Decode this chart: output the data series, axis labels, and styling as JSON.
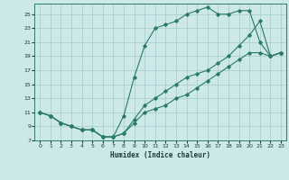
{
  "xlabel": "Humidex (Indice chaleur)",
  "bg_color": "#cce8e8",
  "grid_color": "#aacfcf",
  "line_color": "#2a7a6a",
  "line1_y": [
    11,
    10.5,
    9.5,
    9,
    8.5,
    8.5,
    7.5,
    7.5,
    10.5,
    16,
    20.5,
    23,
    23.5,
    24,
    25,
    25.5,
    26,
    25,
    25,
    25.5,
    25.5,
    21,
    19,
    19.5
  ],
  "line2_y": [
    11,
    10.5,
    9.5,
    9,
    8.5,
    8.5,
    7.5,
    7.5,
    8,
    10,
    12,
    13,
    14,
    15,
    16,
    16.5,
    17,
    18,
    19,
    20.5,
    22,
    24,
    19,
    19.5
  ],
  "line3_y": [
    11,
    10.5,
    9.5,
    9,
    8.5,
    8.5,
    7.5,
    7.5,
    8,
    9.5,
    11,
    11.5,
    12,
    13,
    13.5,
    14.5,
    15.5,
    16.5,
    17.5,
    18.5,
    19.5,
    19.5,
    19,
    19.5
  ],
  "xlim": [
    -0.5,
    23.5
  ],
  "ylim": [
    7,
    26.5
  ],
  "yticks": [
    7,
    9,
    11,
    13,
    15,
    17,
    19,
    21,
    23,
    25
  ],
  "xticks": [
    0,
    1,
    2,
    3,
    4,
    5,
    6,
    7,
    8,
    9,
    10,
    11,
    12,
    13,
    14,
    15,
    16,
    17,
    18,
    19,
    20,
    21,
    22,
    23
  ]
}
